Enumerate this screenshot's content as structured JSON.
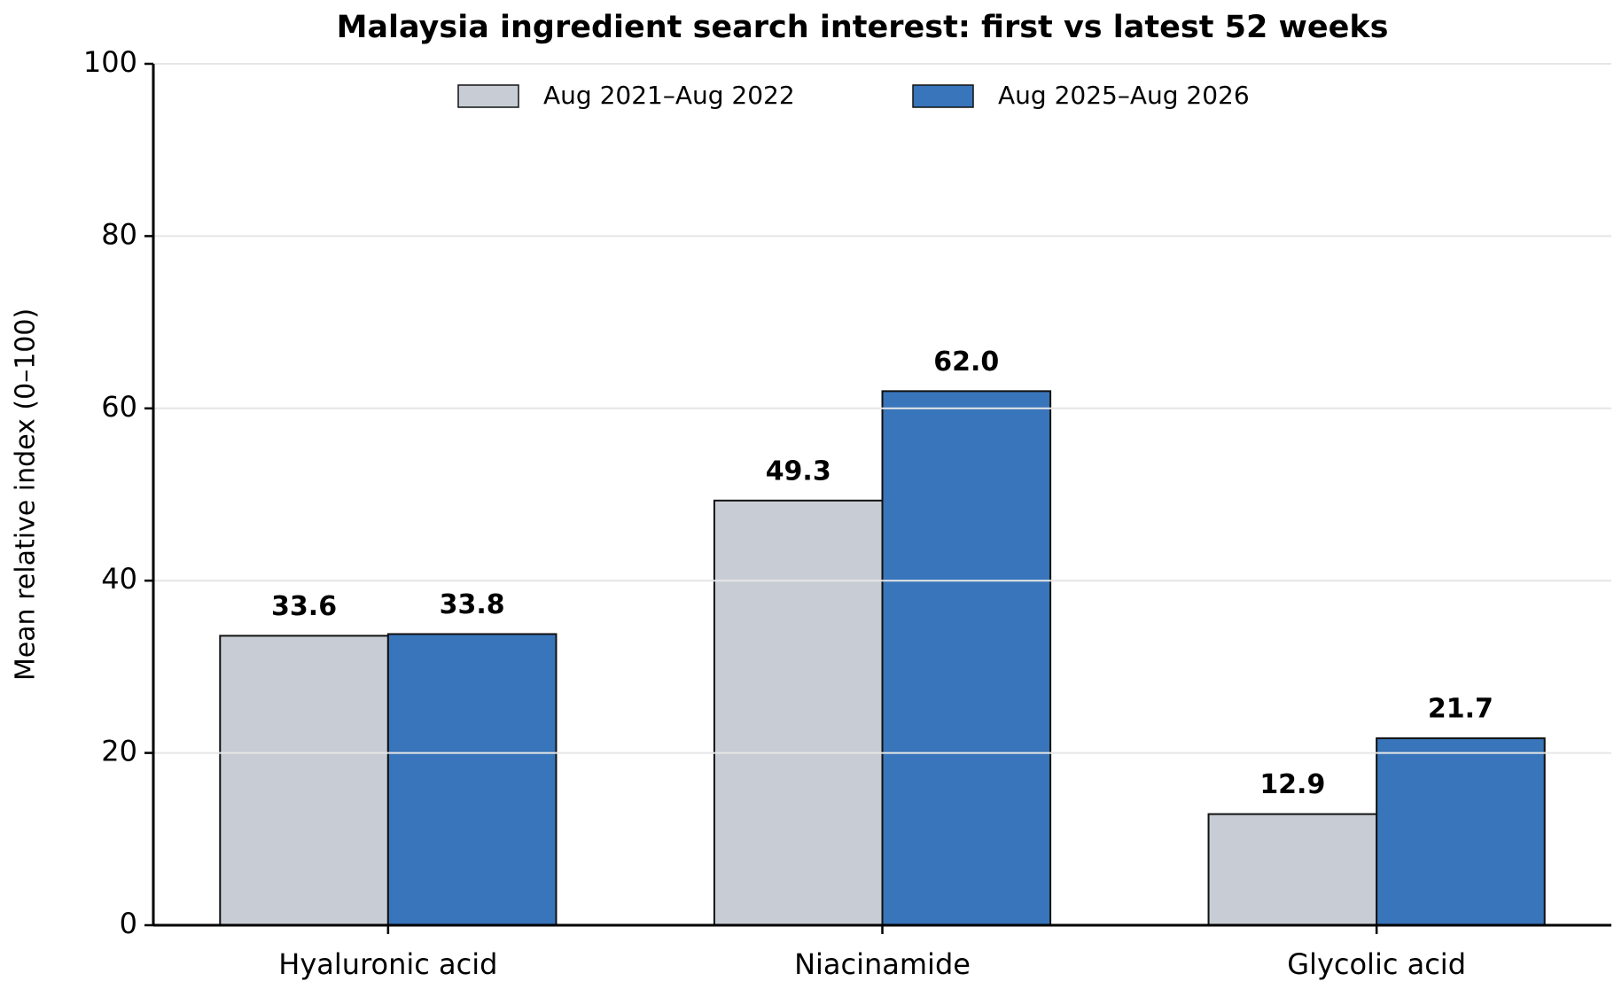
{
  "chart_data": {
    "type": "bar",
    "title": "Malaysia ingredient search interest: first vs latest 52 weeks",
    "y_label": "Mean relative index (0–100)",
    "categories": [
      "Hyaluronic acid",
      "Niacinamide",
      "Glycolic acid"
    ],
    "series": [
      {
        "name": "Aug 2021–Aug 2022",
        "color": "#c8ccd4",
        "values": [
          33.6,
          49.3,
          12.9
        ],
        "value_labels": [
          "33.6",
          "49.3",
          "12.9"
        ]
      },
      {
        "name": "Aug 2025–Aug 2026",
        "color": "#3875ba",
        "values": [
          33.8,
          62,
          21.7
        ],
        "value_labels": [
          "33.8",
          "62.0",
          "21.7"
        ]
      }
    ],
    "ylim": [
      0,
      100
    ],
    "yticks": [
      0,
      20,
      40,
      60,
      80,
      100
    ],
    "grid": true,
    "legend": "top"
  }
}
